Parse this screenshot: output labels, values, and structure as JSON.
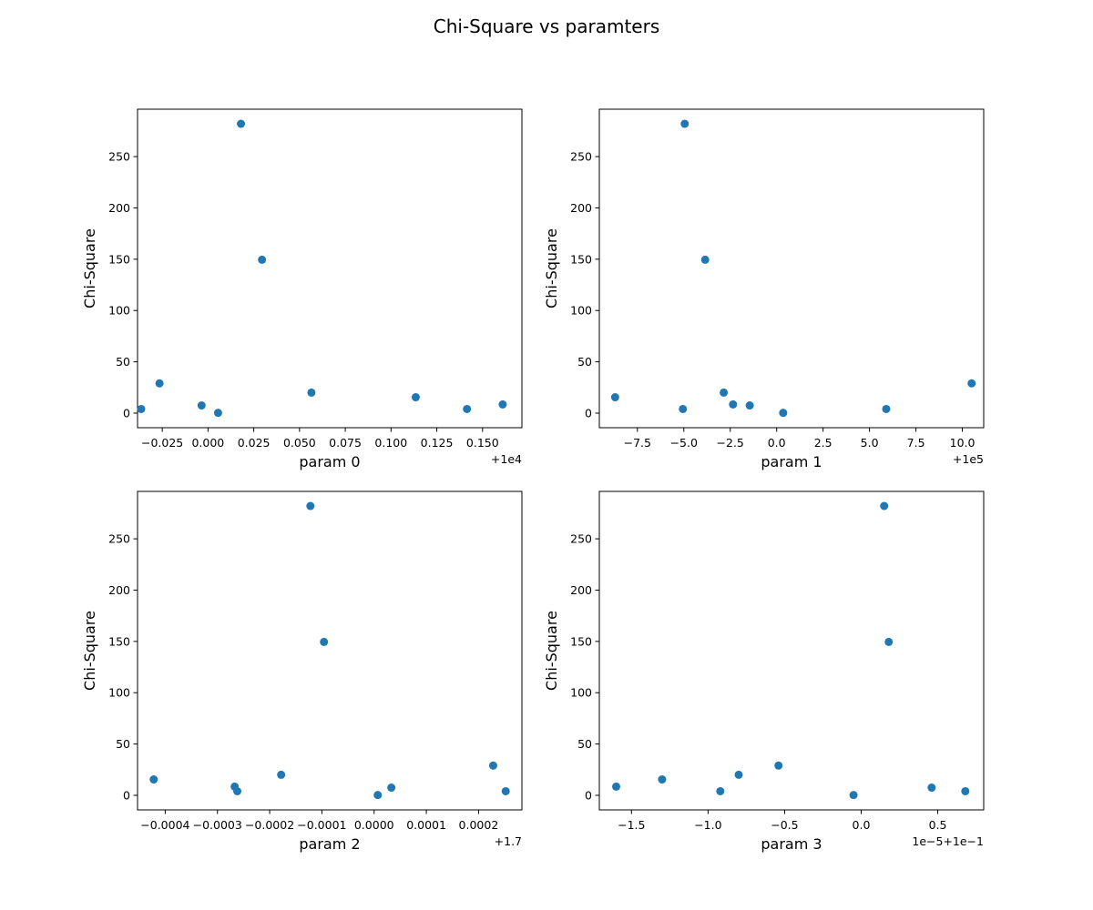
{
  "title": "Chi-Square vs paramters",
  "colors": {
    "marker": "#1f77b4",
    "axes": "#000000",
    "background": "#ffffff"
  },
  "chart_data": [
    {
      "type": "scatter",
      "xlabel": "param 0",
      "ylabel": "Chi-Square",
      "offset_text": "+1e4",
      "xlim": [
        -0.0385,
        0.1715
      ],
      "ylim": [
        -14.2,
        296.2
      ],
      "x_ticks": [
        -0.025,
        0.0,
        0.025,
        0.05,
        0.075,
        0.1,
        0.125,
        0.15
      ],
      "x_tick_labels": [
        "−0.025",
        "0.000",
        "0.025",
        "0.050",
        "0.075",
        "0.100",
        "0.125",
        "0.150"
      ],
      "y_ticks": [
        0,
        50,
        100,
        150,
        200,
        250
      ],
      "y_tick_labels": [
        "0",
        "50",
        "100",
        "150",
        "200",
        "250"
      ],
      "grid": false,
      "points": [
        [
          -0.0365,
          4
        ],
        [
          -0.0265,
          29
        ],
        [
          -0.0035,
          7.5
        ],
        [
          0.0055,
          0.3
        ],
        [
          0.018,
          282
        ],
        [
          0.0295,
          149.5
        ],
        [
          0.0565,
          20
        ],
        [
          0.1135,
          15.5
        ],
        [
          0.1415,
          4
        ],
        [
          0.161,
          8.5
        ]
      ]
    },
    {
      "type": "scatter",
      "xlabel": "param 1",
      "ylabel": "Chi-Square",
      "offset_text": "+1e5",
      "xlim": [
        -9.55,
        11.15
      ],
      "ylim": [
        -14.2,
        296.2
      ],
      "x_ticks": [
        -7.5,
        -5.0,
        -2.5,
        0.0,
        2.5,
        5.0,
        7.5,
        10.0
      ],
      "x_tick_labels": [
        "−7.5",
        "−5.0",
        "−2.5",
        "0.0",
        "2.5",
        "5.0",
        "7.5",
        "10.0"
      ],
      "y_ticks": [
        0,
        50,
        100,
        150,
        200,
        250
      ],
      "y_tick_labels": [
        "0",
        "50",
        "100",
        "150",
        "200",
        "250"
      ],
      "grid": false,
      "points": [
        [
          -8.7,
          15.5
        ],
        [
          -5.05,
          4
        ],
        [
          -4.95,
          282
        ],
        [
          -3.85,
          149.5
        ],
        [
          -2.85,
          20
        ],
        [
          -2.35,
          8.5
        ],
        [
          -1.45,
          7.5
        ],
        [
          0.35,
          0.3
        ],
        [
          5.9,
          4
        ],
        [
          10.5,
          29
        ]
      ]
    },
    {
      "type": "scatter",
      "xlabel": "param 2",
      "ylabel": "Chi-Square",
      "offset_text": "+1.7",
      "xlim": [
        -0.000453,
        0.000283
      ],
      "ylim": [
        -14.2,
        296.2
      ],
      "x_ticks": [
        -0.0004,
        -0.0003,
        -0.0002,
        -0.0001,
        0.0,
        0.0001,
        0.0002
      ],
      "x_tick_labels": [
        "−0.0004",
        "−0.0003",
        "−0.0002",
        "−0.0001",
        "0.0000",
        "0.0001",
        "0.0002"
      ],
      "y_ticks": [
        0,
        50,
        100,
        150,
        200,
        250
      ],
      "y_tick_labels": [
        "0",
        "50",
        "100",
        "150",
        "200",
        "250"
      ],
      "grid": false,
      "points": [
        [
          -0.000422,
          15.5
        ],
        [
          -0.000267,
          8.5
        ],
        [
          -0.000262,
          4
        ],
        [
          -0.000178,
          20
        ],
        [
          -0.000122,
          282
        ],
        [
          -9.6e-05,
          149.5
        ],
        [
          7e-06,
          0.3
        ],
        [
          3.3e-05,
          7.5
        ],
        [
          0.000228,
          29
        ],
        [
          0.000252,
          4
        ]
      ]
    },
    {
      "type": "scatter",
      "xlabel": "param 3",
      "ylabel": "Chi-Square",
      "offset_text": "1e−5+1e−1",
      "xlim": [
        -1.71,
        0.8
      ],
      "ylim": [
        -14.2,
        296.2
      ],
      "x_ticks": [
        -1.5,
        -1.0,
        -0.5,
        0.0,
        0.5
      ],
      "x_tick_labels": [
        "−1.5",
        "−1.0",
        "−0.5",
        "0.0",
        "0.5"
      ],
      "y_ticks": [
        0,
        50,
        100,
        150,
        200,
        250
      ],
      "y_tick_labels": [
        "0",
        "50",
        "100",
        "150",
        "200",
        "250"
      ],
      "grid": false,
      "points": [
        [
          -1.6,
          8.5
        ],
        [
          -1.3,
          15.5
        ],
        [
          -0.92,
          4
        ],
        [
          -0.8,
          20
        ],
        [
          -0.54,
          29
        ],
        [
          -0.05,
          0.3
        ],
        [
          0.15,
          282
        ],
        [
          0.18,
          149.5
        ],
        [
          0.46,
          7.5
        ],
        [
          0.68,
          4
        ]
      ]
    }
  ]
}
